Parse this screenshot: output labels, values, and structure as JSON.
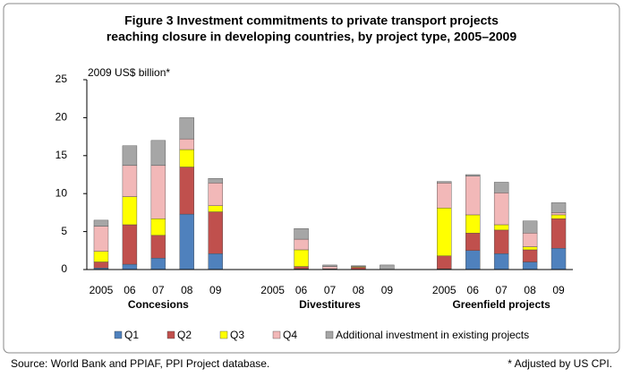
{
  "chart_data": {
    "type": "stacked_bar",
    "title": [
      "Figure 3 Investment commitments to private transport projects",
      "reaching closure in developing countries, by project type, 2005–2009"
    ],
    "y_label": "2009 US$ billion*",
    "categories": [
      "2005",
      "06",
      "07",
      "08",
      "09",
      null,
      "2005",
      "06",
      "07",
      "08",
      "09",
      null,
      "2005",
      "06",
      "07",
      "08",
      "09"
    ],
    "groups": [
      {
        "label": "Concesions",
        "start": 0,
        "end": 4
      },
      {
        "label": "Divestitures",
        "start": 6,
        "end": 10
      },
      {
        "label": "Greenfield projects",
        "start": 12,
        "end": 16
      }
    ],
    "series": [
      {
        "name": "Q1",
        "color": "#4f81bd",
        "values": [
          0.2,
          0.7,
          1.5,
          7.3,
          2.1,
          null,
          0,
          0.1,
          0,
          0,
          0,
          null,
          0.1,
          2.5,
          2.1,
          1.0,
          2.8
        ]
      },
      {
        "name": "Q2",
        "color": "#c0504d",
        "values": [
          0.8,
          5.2,
          3.0,
          6.2,
          5.5,
          null,
          0,
          0.3,
          0.1,
          0.3,
          0,
          null,
          1.7,
          2.3,
          3.1,
          1.6,
          3.9
        ]
      },
      {
        "name": "Q3",
        "color": "#ffff00",
        "values": [
          1.4,
          3.7,
          2.2,
          2.3,
          0.8,
          null,
          0,
          2.2,
          0,
          0.1,
          0,
          null,
          6.3,
          2.4,
          0.7,
          0.4,
          0.5
        ]
      },
      {
        "name": "Q4",
        "color": "#f2b8b8",
        "values": [
          3.3,
          4.1,
          7.0,
          1.4,
          3.0,
          null,
          0,
          1.4,
          0.3,
          0,
          0,
          null,
          3.3,
          5.1,
          4.2,
          1.8,
          0.3
        ]
      },
      {
        "name": "Additional investment in existing projects",
        "color": "#a6a6a6",
        "values": [
          0.8,
          2.6,
          3.3,
          2.8,
          0.6,
          null,
          0,
          1.4,
          0.2,
          0.1,
          0.6,
          null,
          0.2,
          0.2,
          1.4,
          1.6,
          1.3
        ]
      }
    ],
    "ylim": [
      0,
      25
    ],
    "yticks": [
      0,
      5,
      10,
      15,
      20,
      25
    ],
    "source": "Source:  World Bank and PPIAF, PPI Project database.",
    "note": "* Adjusted by US CPI."
  }
}
